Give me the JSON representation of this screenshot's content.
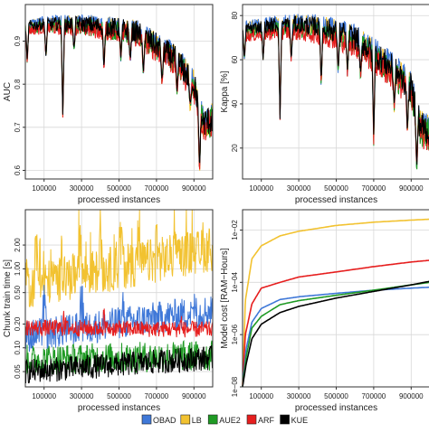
{
  "colors": {
    "OBAD": "#3f78d8",
    "LB": "#f2c230",
    "AUE2": "#1f9a24",
    "ARF": "#e61e1e",
    "KUE": "#000000",
    "grid": "#d8d8d8"
  },
  "legend": [
    "OBAD",
    "LB",
    "AUE2",
    "ARF",
    "KUE"
  ],
  "chart_data": [
    {
      "type": "line",
      "id": "auc",
      "xlabel": "processed instances",
      "ylabel": "AUC",
      "xlim": [
        0,
        1000000
      ],
      "ylim": [
        0.58,
        0.985
      ],
      "xticks": [
        100000,
        300000,
        500000,
        700000,
        900000
      ],
      "xticklabels": [
        "100000",
        "300000",
        "500000",
        "700000",
        "900000"
      ],
      "yticks": [
        0.6,
        0.7,
        0.8,
        0.9
      ],
      "yticklabels": [
        "0.6",
        "0.7",
        "0.8",
        "0.9"
      ],
      "log_y": false,
      "grid": true,
      "profile": {
        "x": [
          0,
          100000,
          200000,
          300000,
          400000,
          500000,
          600000,
          700000,
          800000,
          900000,
          950000,
          1000000
        ],
        "y": [
          0.935,
          0.94,
          0.94,
          0.94,
          0.935,
          0.93,
          0.92,
          0.89,
          0.86,
          0.8,
          0.71,
          0.72
        ]
      },
      "dips": [
        [
          10000,
          0.85
        ],
        [
          110000,
          0.86
        ],
        [
          200000,
          0.73
        ],
        [
          260000,
          0.88
        ],
        [
          420000,
          0.83
        ],
        [
          510000,
          0.86
        ],
        [
          560000,
          0.85
        ],
        [
          630000,
          0.82
        ],
        [
          730000,
          0.8
        ],
        [
          810000,
          0.78
        ],
        [
          880000,
          0.74
        ],
        [
          930000,
          0.6
        ]
      ],
      "noise": 0.012,
      "offsets": {
        "OBAD": 0.004,
        "LB": 0.002,
        "AUE2": -0.006,
        "ARF": -0.01,
        "KUE": 0.0
      }
    },
    {
      "type": "line",
      "id": "kappa",
      "xlabel": "processed instances",
      "ylabel": "Kappa [%]",
      "xlim": [
        0,
        1000000
      ],
      "ylim": [
        6,
        85
      ],
      "xticks": [
        100000,
        300000,
        500000,
        700000,
        900000
      ],
      "xticklabels": [
        "100000",
        "300000",
        "500000",
        "700000",
        "900000"
      ],
      "yticks": [
        20,
        40,
        60,
        80
      ],
      "yticklabels": [
        "20",
        "40",
        "60",
        "80"
      ],
      "log_y": false,
      "grid": true,
      "profile": {
        "x": [
          0,
          100000,
          200000,
          300000,
          400000,
          500000,
          600000,
          700000,
          800000,
          900000,
          950000,
          1000000
        ],
        "y": [
          74,
          75,
          76,
          76,
          75,
          73,
          70,
          63,
          56,
          47,
          30,
          28
        ]
      },
      "dips": [
        [
          10000,
          60
        ],
        [
          110000,
          60
        ],
        [
          200000,
          34
        ],
        [
          260000,
          60
        ],
        [
          420000,
          48
        ],
        [
          510000,
          55
        ],
        [
          560000,
          54
        ],
        [
          630000,
          52
        ],
        [
          700000,
          24
        ],
        [
          810000,
          38
        ],
        [
          880000,
          28
        ],
        [
          930000,
          10
        ]
      ],
      "noise": 2.5,
      "offsets": {
        "OBAD": 1.0,
        "LB": 0.5,
        "AUE2": -2.0,
        "ARF": -3.5,
        "KUE": 0.0
      }
    },
    {
      "type": "line",
      "id": "time",
      "xlabel": "processed instances",
      "ylabel": "Chunk train time [s]",
      "xlim": [
        0,
        1000000
      ],
      "ylim": [
        0.032,
        5.6
      ],
      "xticks": [
        100000,
        300000,
        500000,
        700000,
        900000
      ],
      "xticklabels": [
        "100000",
        "300000",
        "500000",
        "700000",
        "900000"
      ],
      "yticks": [
        0.05,
        0.1,
        0.2,
        0.5,
        1.0,
        2.0
      ],
      "yticklabels": [
        "0.05",
        "0.10",
        "0.20",
        "0.50",
        "1.00",
        "2.00"
      ],
      "log_y": true,
      "grid": true,
      "series": {
        "LB": {
          "base": [
            [
              0,
              0.6
            ],
            [
              1000000,
              1.8
            ]
          ],
          "noise": 0.22,
          "spikes": [
            [
              0,
              1.8
            ],
            [
              60000,
              3.0
            ],
            [
              200000,
              2.5
            ],
            [
              290000,
              3.5
            ],
            [
              400000,
              4.0
            ],
            [
              510000,
              4.3
            ],
            [
              600000,
              3.8
            ],
            [
              700000,
              3.2
            ],
            [
              800000,
              2.8
            ],
            [
              920000,
              2.4
            ]
          ]
        },
        "OBAD": {
          "base": [
            [
              0,
              0.14
            ],
            [
              1000000,
              0.3
            ]
          ],
          "noise": 0.16,
          "spikes": [
            [
              100000,
              0.5
            ],
            [
              300000,
              0.6
            ],
            [
              520000,
              0.45
            ],
            [
              900000,
              0.5
            ]
          ]
        },
        "ARF": {
          "base": [
            [
              0,
              0.18
            ],
            [
              1000000,
              0.17
            ]
          ],
          "noise": 0.08,
          "spikes": [
            [
              210000,
              0.4
            ],
            [
              420000,
              0.3
            ],
            [
              830000,
              0.25
            ]
          ]
        },
        "AUE2": {
          "base": [
            [
              0,
              0.07
            ],
            [
              1000000,
              0.08
            ]
          ],
          "noise": 0.15,
          "spikes": []
        },
        "KUE": {
          "base": [
            [
              0,
              0.05
            ],
            [
              1000000,
              0.075
            ]
          ],
          "noise": 0.12,
          "spikes": []
        }
      }
    },
    {
      "type": "line",
      "id": "cost",
      "xlabel": "processed instances",
      "ylabel": "Model cost [RAM−Hours]",
      "xlim": [
        0,
        1000000
      ],
      "ylim": [
        1e-08,
        0.06
      ],
      "xticks": [
        100000,
        300000,
        500000,
        700000,
        900000
      ],
      "xticklabels": [
        "100000",
        "300000",
        "500000",
        "700000",
        "900000"
      ],
      "yticks": [
        1e-08,
        1e-06,
        0.0001,
        0.01
      ],
      "yticklabels": [
        "1e−08",
        "1e−06",
        "1e−04",
        "1e−02"
      ],
      "log_y": true,
      "grid": true,
      "series": {
        "LB": [
          [
            0,
            1e-08
          ],
          [
            15000,
            2e-05
          ],
          [
            50000,
            0.0008
          ],
          [
            100000,
            0.0025
          ],
          [
            200000,
            0.006
          ],
          [
            300000,
            0.009
          ],
          [
            500000,
            0.015
          ],
          [
            700000,
            0.02
          ],
          [
            900000,
            0.024
          ],
          [
            1000000,
            0.026
          ]
        ],
        "ARF": [
          [
            0,
            1e-08
          ],
          [
            15000,
            1e-06
          ],
          [
            50000,
            1.5e-05
          ],
          [
            100000,
            6e-05
          ],
          [
            200000,
            0.0001
          ],
          [
            300000,
            0.00016
          ],
          [
            500000,
            0.00025
          ],
          [
            700000,
            0.0004
          ],
          [
            900000,
            0.0006
          ],
          [
            1000000,
            0.0007
          ]
        ],
        "OBAD": [
          [
            0,
            1e-08
          ],
          [
            20000,
            3e-07
          ],
          [
            50000,
            3e-06
          ],
          [
            100000,
            1e-05
          ],
          [
            200000,
            2.2e-05
          ],
          [
            300000,
            2.8e-05
          ],
          [
            500000,
            3.8e-05
          ],
          [
            700000,
            5e-05
          ],
          [
            900000,
            6e-05
          ],
          [
            1000000,
            6.5e-05
          ]
        ],
        "AUE2": [
          [
            0,
            1e-08
          ],
          [
            20000,
            1.5e-07
          ],
          [
            50000,
            1.8e-06
          ],
          [
            100000,
            5e-06
          ],
          [
            200000,
            1.4e-05
          ],
          [
            300000,
            2e-05
          ],
          [
            500000,
            3.2e-05
          ],
          [
            700000,
            5e-05
          ],
          [
            900000,
            8e-05
          ],
          [
            1000000,
            0.0001
          ]
        ],
        "KUE": [
          [
            0,
            1e-08
          ],
          [
            20000,
            8e-08
          ],
          [
            50000,
            7e-07
          ],
          [
            100000,
            2.5e-06
          ],
          [
            200000,
            7e-06
          ],
          [
            300000,
            1.2e-05
          ],
          [
            500000,
            2.5e-05
          ],
          [
            700000,
            4.5e-05
          ],
          [
            900000,
            8e-05
          ],
          [
            1000000,
            0.00011
          ]
        ]
      }
    }
  ]
}
